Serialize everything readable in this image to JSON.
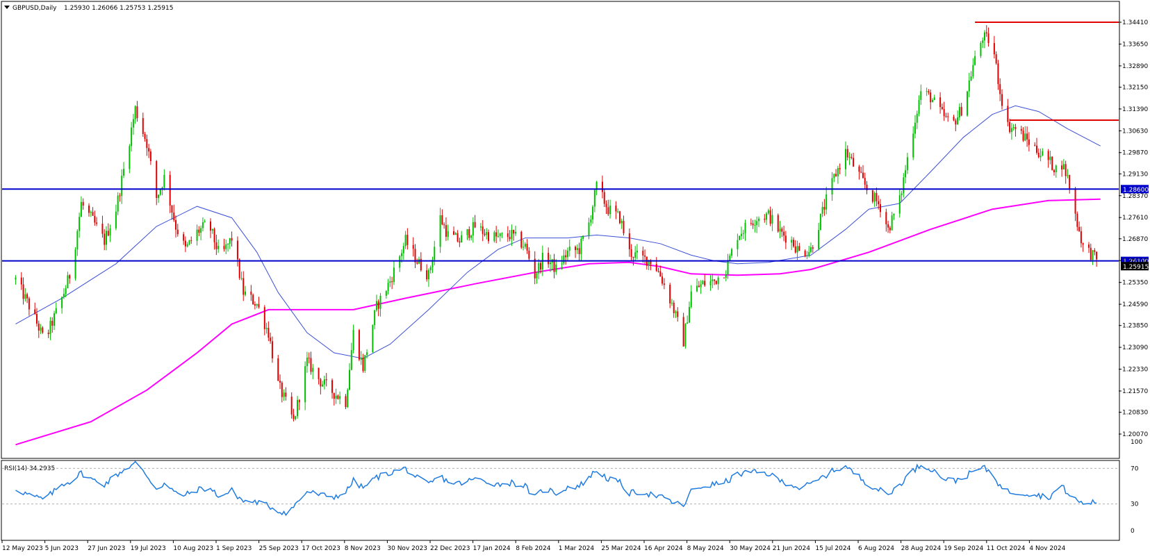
{
  "chart_data": [
    {
      "type": "candlestick",
      "title": "GBPUSD,Daily",
      "ohlc_header": {
        "open": "1.25930",
        "high": "1.26066",
        "low": "1.25753",
        "close": "1.25915"
      },
      "y_tick_labels": [
        "1.34410",
        "1.33650",
        "1.32890",
        "1.32150",
        "1.31390",
        "1.30630",
        "1.29870",
        "1.29130",
        "1.28370",
        "1.27610",
        "1.26870",
        "1.26110",
        "1.25350",
        "1.24590",
        "1.23850",
        "1.23090",
        "1.22330",
        "1.21570",
        "1.20830",
        "1.20070"
      ],
      "ylim": [
        1.2007,
        1.3441
      ],
      "x_tick_labels": [
        "12 May 2023",
        "5 Jun 2023",
        "27 Jun 2023",
        "19 Jul 2023",
        "10 Aug 2023",
        "1 Sep 2023",
        "25 Sep 2023",
        "17 Oct 2023",
        "8 Nov 2023",
        "30 Nov 2023",
        "22 Dec 2023",
        "17 Jan 2024",
        "8 Feb 2024",
        "1 Mar 2024",
        "25 Mar 2024",
        "16 Apr 2024",
        "8 May 2024",
        "30 May 2024",
        "21 Jun 2024",
        "15 Jul 2024",
        "6 Aug 2024",
        "28 Aug 2024",
        "19 Sep 2024",
        "11 Oct 2024",
        "4 Nov 2024"
      ],
      "colors": {
        "bull": "#00c000",
        "bear": "#e00000",
        "ma_fast": "#3a4fd8",
        "ma_slow": "#ff00ff",
        "support_lines": "#0000cc",
        "resistance_lines": "#e00000",
        "current_price_label_bg": "#000000"
      },
      "price_path": [
        [
          "2023-05-12",
          1.2545
        ],
        [
          "2023-05-20",
          1.244
        ],
        [
          "2023-05-27",
          1.233
        ],
        [
          "2023-06-05",
          1.248
        ],
        [
          "2023-06-10",
          1.258
        ],
        [
          "2023-06-15",
          1.281
        ],
        [
          "2023-06-20",
          1.276
        ],
        [
          "2023-06-27",
          1.268
        ],
        [
          "2023-07-03",
          1.279
        ],
        [
          "2023-07-08",
          1.296
        ],
        [
          "2023-07-13",
          1.314
        ],
        [
          "2023-07-19",
          1.302
        ],
        [
          "2023-07-24",
          1.283
        ],
        [
          "2023-07-28",
          1.29
        ],
        [
          "2023-08-03",
          1.273
        ],
        [
          "2023-08-08",
          1.265
        ],
        [
          "2023-08-14",
          1.271
        ],
        [
          "2023-08-20",
          1.274
        ],
        [
          "2023-08-26",
          1.262
        ],
        [
          "2023-09-01",
          1.269
        ],
        [
          "2023-09-07",
          1.25
        ],
        [
          "2023-09-14",
          1.246
        ],
        [
          "2023-09-20",
          1.236
        ],
        [
          "2023-09-25",
          1.218
        ],
        [
          "2023-09-30",
          1.21
        ],
        [
          "2023-10-03",
          1.205
        ],
        [
          "2023-10-10",
          1.226
        ],
        [
          "2023-10-17",
          1.219
        ],
        [
          "2023-10-24",
          1.215
        ],
        [
          "2023-10-30",
          1.212
        ],
        [
          "2023-11-03",
          1.236
        ],
        [
          "2023-11-08",
          1.224
        ],
        [
          "2023-11-15",
          1.245
        ],
        [
          "2023-11-22",
          1.254
        ],
        [
          "2023-11-30",
          1.268
        ],
        [
          "2023-12-06",
          1.261
        ],
        [
          "2023-12-12",
          1.256
        ],
        [
          "2023-12-18",
          1.276
        ],
        [
          "2023-12-22",
          1.27
        ],
        [
          "2023-12-28",
          1.268
        ],
        [
          "2024-01-05",
          1.273
        ],
        [
          "2024-01-12",
          1.27
        ],
        [
          "2024-01-17",
          1.269
        ],
        [
          "2024-01-24",
          1.27
        ],
        [
          "2024-01-31",
          1.266
        ],
        [
          "2024-02-05",
          1.256
        ],
        [
          "2024-02-10",
          1.263
        ],
        [
          "2024-02-16",
          1.258
        ],
        [
          "2024-02-22",
          1.264
        ],
        [
          "2024-02-28",
          1.265
        ],
        [
          "2024-03-04",
          1.274
        ],
        [
          "2024-03-08",
          1.287
        ],
        [
          "2024-03-14",
          1.279
        ],
        [
          "2024-03-20",
          1.276
        ],
        [
          "2024-03-25",
          1.264
        ],
        [
          "2024-03-31",
          1.262
        ],
        [
          "2024-04-06",
          1.261
        ],
        [
          "2024-04-10",
          1.256
        ],
        [
          "2024-04-16",
          1.246
        ],
        [
          "2024-04-22",
          1.233
        ],
        [
          "2024-04-26",
          1.25
        ],
        [
          "2024-05-02",
          1.253
        ],
        [
          "2024-05-08",
          1.254
        ],
        [
          "2024-05-14",
          1.258
        ],
        [
          "2024-05-20",
          1.27
        ],
        [
          "2024-05-26",
          1.274
        ],
        [
          "2024-05-30",
          1.276
        ],
        [
          "2024-06-05",
          1.277
        ],
        [
          "2024-06-11",
          1.271
        ],
        [
          "2024-06-17",
          1.268
        ],
        [
          "2024-06-21",
          1.264
        ],
        [
          "2024-06-27",
          1.265
        ],
        [
          "2024-07-03",
          1.278
        ],
        [
          "2024-07-09",
          1.29
        ],
        [
          "2024-07-15",
          1.299
        ],
        [
          "2024-07-21",
          1.292
        ],
        [
          "2024-07-27",
          1.285
        ],
        [
          "2024-08-02",
          1.28
        ],
        [
          "2024-08-06",
          1.272
        ],
        [
          "2024-08-12",
          1.282
        ],
        [
          "2024-08-18",
          1.304
        ],
        [
          "2024-08-23",
          1.32
        ],
        [
          "2024-08-28",
          1.318
        ],
        [
          "2024-09-03",
          1.312
        ],
        [
          "2024-09-08",
          1.308
        ],
        [
          "2024-09-14",
          1.315
        ],
        [
          "2024-09-19",
          1.329
        ],
        [
          "2024-09-24",
          1.339
        ],
        [
          "2024-09-29",
          1.337
        ],
        [
          "2024-10-03",
          1.32
        ],
        [
          "2024-10-07",
          1.308
        ],
        [
          "2024-10-11",
          1.307
        ],
        [
          "2024-10-17",
          1.303
        ],
        [
          "2024-10-23",
          1.299
        ],
        [
          "2024-10-28",
          1.296
        ],
        [
          "2024-11-01",
          1.293
        ],
        [
          "2024-11-04",
          1.295
        ],
        [
          "2024-11-07",
          1.29
        ],
        [
          "2024-11-11",
          1.277
        ],
        [
          "2024-11-15",
          1.266
        ],
        [
          "2024-11-20",
          1.263
        ],
        [
          "2024-11-24",
          1.2591
        ]
      ],
      "moving_average_fast": [
        [
          "2023-05-12",
          1.239
        ],
        [
          "2023-06-05",
          1.248
        ],
        [
          "2023-07-03",
          1.26
        ],
        [
          "2023-07-24",
          1.273
        ],
        [
          "2023-08-14",
          1.28
        ],
        [
          "2023-09-01",
          1.276
        ],
        [
          "2023-09-14",
          1.264
        ],
        [
          "2023-09-25",
          1.25
        ],
        [
          "2023-10-10",
          1.236
        ],
        [
          "2023-10-24",
          1.229
        ],
        [
          "2023-11-08",
          1.227
        ],
        [
          "2023-11-22",
          1.232
        ],
        [
          "2023-12-12",
          1.244
        ],
        [
          "2024-01-01",
          1.257
        ],
        [
          "2024-01-17",
          1.265
        ],
        [
          "2024-01-31",
          1.269
        ],
        [
          "2024-02-22",
          1.269
        ],
        [
          "2024-03-08",
          1.27
        ],
        [
          "2024-03-25",
          1.269
        ],
        [
          "2024-04-10",
          1.267
        ],
        [
          "2024-04-26",
          1.263
        ],
        [
          "2024-05-08",
          1.261
        ],
        [
          "2024-05-20",
          1.26
        ],
        [
          "2024-06-05",
          1.2605
        ],
        [
          "2024-06-27",
          1.263
        ],
        [
          "2024-07-15",
          1.272
        ],
        [
          "2024-07-27",
          1.279
        ],
        [
          "2024-08-12",
          1.281
        ],
        [
          "2024-08-28",
          1.292
        ],
        [
          "2024-09-14",
          1.304
        ],
        [
          "2024-09-29",
          1.312
        ],
        [
          "2024-10-11",
          1.315
        ],
        [
          "2024-10-23",
          1.313
        ],
        [
          "2024-11-07",
          1.307
        ],
        [
          "2024-11-24",
          1.301
        ]
      ],
      "moving_average_slow": [
        [
          "2023-05-12",
          1.197
        ],
        [
          "2023-06-20",
          1.205
        ],
        [
          "2023-07-19",
          1.216
        ],
        [
          "2023-08-14",
          1.229
        ],
        [
          "2023-09-01",
          1.239
        ],
        [
          "2023-09-20",
          1.244
        ],
        [
          "2023-10-17",
          1.244
        ],
        [
          "2023-11-03",
          1.244
        ],
        [
          "2023-11-30",
          1.248
        ],
        [
          "2024-01-05",
          1.253
        ],
        [
          "2024-02-05",
          1.257
        ],
        [
          "2024-03-04",
          1.26
        ],
        [
          "2024-03-25",
          1.2605
        ],
        [
          "2024-04-10",
          1.259
        ],
        [
          "2024-04-26",
          1.2565
        ],
        [
          "2024-05-20",
          1.256
        ],
        [
          "2024-06-11",
          1.2565
        ],
        [
          "2024-06-27",
          1.258
        ],
        [
          "2024-07-27",
          1.264
        ],
        [
          "2024-08-28",
          1.272
        ],
        [
          "2024-09-29",
          1.279
        ],
        [
          "2024-10-28",
          1.282
        ],
        [
          "2024-11-24",
          1.2825
        ]
      ],
      "horizontal_levels": [
        {
          "label": "1.28600",
          "value": 1.286,
          "color": "#0000cc",
          "start": "2023-05-05"
        },
        {
          "label": "1.26100",
          "value": 1.261,
          "color": "#0000cc",
          "start": "2023-05-05"
        },
        {
          "label": "",
          "value": 1.3441,
          "color": "#e00000",
          "start": "2024-09-20"
        },
        {
          "label": "",
          "value": 1.31,
          "color": "#e00000",
          "start": "2024-10-08"
        }
      ],
      "current_price_label": "1.25915",
      "current_price": 1.25915
    },
    {
      "type": "line",
      "title": "RSI(14) 34.2935",
      "y_tick_labels": [
        "100",
        "70",
        "30",
        "0"
      ],
      "ylim": [
        0,
        100
      ],
      "levels": [
        70,
        30
      ],
      "color": "#1e7be0",
      "values": [
        [
          "2023-05-12",
          47
        ],
        [
          "2023-05-20",
          39
        ],
        [
          "2023-05-27",
          35
        ],
        [
          "2023-06-05",
          52
        ],
        [
          "2023-06-10",
          56
        ],
        [
          "2023-06-15",
          65
        ],
        [
          "2023-06-20",
          58
        ],
        [
          "2023-06-27",
          52
        ],
        [
          "2023-07-03",
          62
        ],
        [
          "2023-07-08",
          70
        ],
        [
          "2023-07-13",
          76
        ],
        [
          "2023-07-19",
          62
        ],
        [
          "2023-07-24",
          47
        ],
        [
          "2023-07-28",
          53
        ],
        [
          "2023-08-03",
          42
        ],
        [
          "2023-08-08",
          40
        ],
        [
          "2023-08-14",
          46
        ],
        [
          "2023-08-20",
          48
        ],
        [
          "2023-08-26",
          38
        ],
        [
          "2023-09-01",
          45
        ],
        [
          "2023-09-07",
          33
        ],
        [
          "2023-09-14",
          32
        ],
        [
          "2023-09-20",
          28
        ],
        [
          "2023-09-25",
          22
        ],
        [
          "2023-09-30",
          20
        ],
        [
          "2023-10-03",
          27
        ],
        [
          "2023-10-10",
          44
        ],
        [
          "2023-10-17",
          40
        ],
        [
          "2023-10-24",
          38
        ],
        [
          "2023-10-30",
          43
        ],
        [
          "2023-11-03",
          56
        ],
        [
          "2023-11-08",
          48
        ],
        [
          "2023-11-15",
          60
        ],
        [
          "2023-11-22",
          65
        ],
        [
          "2023-11-30",
          70
        ],
        [
          "2023-12-06",
          59
        ],
        [
          "2023-12-12",
          52
        ],
        [
          "2023-12-18",
          61
        ],
        [
          "2023-12-22",
          55
        ],
        [
          "2023-12-28",
          53
        ],
        [
          "2024-01-05",
          58
        ],
        [
          "2024-01-12",
          55
        ],
        [
          "2024-01-17",
          52
        ],
        [
          "2024-01-24",
          54
        ],
        [
          "2024-01-31",
          50
        ],
        [
          "2024-02-05",
          37
        ],
        [
          "2024-02-10",
          48
        ],
        [
          "2024-02-16",
          42
        ],
        [
          "2024-02-22",
          49
        ],
        [
          "2024-02-28",
          50
        ],
        [
          "2024-03-04",
          60
        ],
        [
          "2024-03-08",
          68
        ],
        [
          "2024-03-14",
          58
        ],
        [
          "2024-03-20",
          54
        ],
        [
          "2024-03-25",
          42
        ],
        [
          "2024-03-31",
          44
        ],
        [
          "2024-04-06",
          40
        ],
        [
          "2024-04-10",
          38
        ],
        [
          "2024-04-16",
          32
        ],
        [
          "2024-04-22",
          28
        ],
        [
          "2024-04-26",
          44
        ],
        [
          "2024-05-02",
          50
        ],
        [
          "2024-05-08",
          52
        ],
        [
          "2024-05-14",
          55
        ],
        [
          "2024-05-20",
          63
        ],
        [
          "2024-05-26",
          66
        ],
        [
          "2024-05-30",
          65
        ],
        [
          "2024-06-05",
          64
        ],
        [
          "2024-06-11",
          56
        ],
        [
          "2024-06-17",
          52
        ],
        [
          "2024-06-21",
          48
        ],
        [
          "2024-06-27",
          52
        ],
        [
          "2024-07-03",
          60
        ],
        [
          "2024-07-09",
          68
        ],
        [
          "2024-07-15",
          72
        ],
        [
          "2024-07-21",
          62
        ],
        [
          "2024-07-27",
          52
        ],
        [
          "2024-08-02",
          45
        ],
        [
          "2024-08-06",
          40
        ],
        [
          "2024-08-12",
          52
        ],
        [
          "2024-08-18",
          66
        ],
        [
          "2024-08-23",
          74
        ],
        [
          "2024-08-28",
          70
        ],
        [
          "2024-09-03",
          60
        ],
        [
          "2024-09-08",
          55
        ],
        [
          "2024-09-14",
          60
        ],
        [
          "2024-09-19",
          66
        ],
        [
          "2024-09-24",
          71
        ],
        [
          "2024-09-29",
          65
        ],
        [
          "2024-10-03",
          50
        ],
        [
          "2024-10-07",
          44
        ],
        [
          "2024-10-11",
          43
        ],
        [
          "2024-10-17",
          42
        ],
        [
          "2024-10-23",
          40
        ],
        [
          "2024-10-28",
          37
        ],
        [
          "2024-11-01",
          45
        ],
        [
          "2024-11-04",
          50
        ],
        [
          "2024-11-07",
          42
        ],
        [
          "2024-11-11",
          35
        ],
        [
          "2024-11-15",
          30
        ],
        [
          "2024-11-20",
          32
        ],
        [
          "2024-11-24",
          34.2935
        ]
      ]
    }
  ]
}
